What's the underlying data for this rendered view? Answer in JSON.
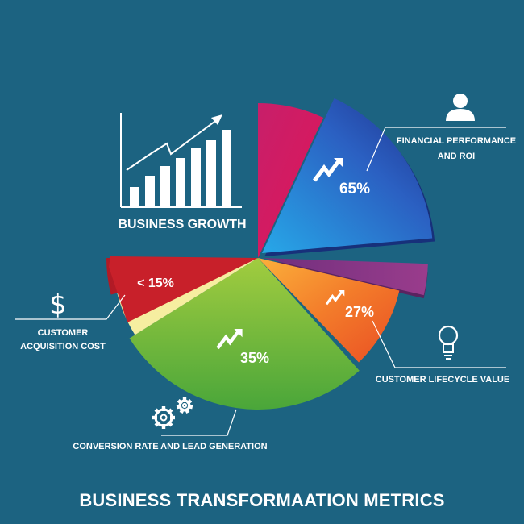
{
  "title": "BUSINESS TRANSFORMAATION METRICS",
  "growth_label": "BUSINESS GROWTH",
  "chart_data": {
    "type": "pie",
    "title": "BUSINESS TRANSFORMAATION METRICS",
    "slices": [
      {
        "key": "crimson",
        "label": "",
        "data_label": "",
        "color": "#d0175f"
      },
      {
        "key": "financial",
        "label": "FINANCIAL PERFORMANCE AND ROI",
        "data_label": "65%",
        "color": "#2a56b8",
        "icon": "person-icon"
      },
      {
        "key": "purple",
        "label": "",
        "data_label": "",
        "color": "#8a2f8a"
      },
      {
        "key": "lifecycle",
        "label": "CUSTOMER LIFECYCLE VALUE",
        "data_label": "27%",
        "color": "#f0762a",
        "icon": "lightbulb-icon"
      },
      {
        "key": "conversion",
        "label": "CONVERSION RATE AND LEAD GENERATION",
        "data_label": "35%",
        "color": "#7fb83a",
        "icon": "gears-icon"
      },
      {
        "key": "yellow",
        "label": "",
        "data_label": "",
        "color": "#f6eea0"
      },
      {
        "key": "acquisition",
        "label": "CUSTOMER ACQUISITION COST",
        "data_label": "< 15%",
        "color": "#c8202a",
        "icon": "dollar-icon"
      }
    ]
  },
  "labels": {
    "financial": [
      "FINANCIAL PERFORMANCE",
      "AND ROI"
    ],
    "lifecycle": [
      "CUSTOMER LIFECYCLE VALUE"
    ],
    "conversion": [
      "CONVERSION RATE AND LEAD GENERATION"
    ],
    "acquisition": [
      "CUSTOMER",
      "ACQUISITION COST"
    ]
  }
}
